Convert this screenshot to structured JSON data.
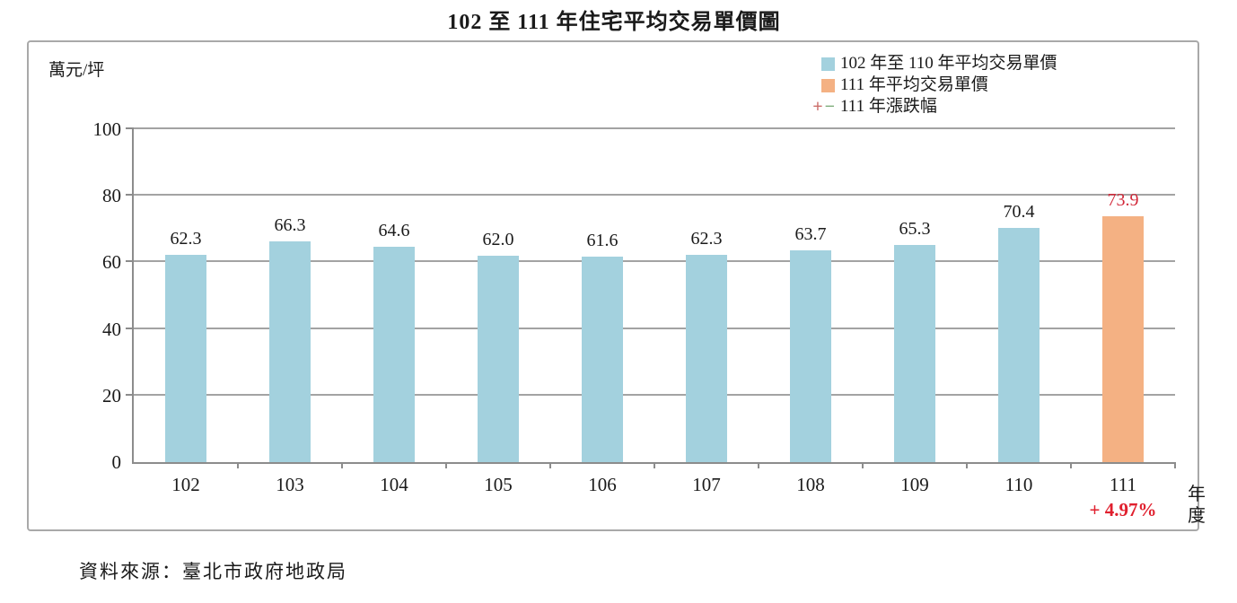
{
  "chart_data": {
    "type": "bar",
    "title": "102 至 111 年住宅平均交易單價圖",
    "ylabel": "萬元/坪",
    "xlabel": "年度",
    "categories": [
      "102",
      "103",
      "104",
      "105",
      "106",
      "107",
      "108",
      "109",
      "110",
      "111"
    ],
    "values": [
      62.3,
      66.3,
      64.6,
      62.0,
      61.6,
      62.3,
      63.7,
      65.3,
      70.4,
      73.9
    ],
    "highlight_index": 9,
    "ylim": [
      0,
      100
    ],
    "ytick_step": 20,
    "grid": true,
    "legend_position": "top-right",
    "annotations": [
      {
        "category": "111",
        "text": "+ 4.97%"
      }
    ]
  },
  "legend": {
    "items": [
      {
        "symbol": "square",
        "name": "primary-series",
        "color": "#A3D1DE",
        "label": "102 年至 110 年平均交易單價"
      },
      {
        "symbol": "square",
        "name": "highlight-series",
        "color": "#F4B183",
        "label": "111 年平均交易單價"
      },
      {
        "symbol": "plus-minus",
        "name": "change-series",
        "plus": "+",
        "minus": "−",
        "label": "111 年漲跌幅"
      }
    ]
  },
  "colors": {
    "bar_primary": "#A3D1DE",
    "bar_highlight": "#F4B183",
    "value_label": "#1a1a1a",
    "value_label_highlight": "#D2293A",
    "annotation_red": "#E0202E",
    "legend_plus": "#CB6F6B",
    "legend_minus": "#7FAE7C",
    "gridline": "#A3A3A3",
    "axis": "#8C8C8C"
  },
  "source": "資料來源：臺北市政府地政局"
}
